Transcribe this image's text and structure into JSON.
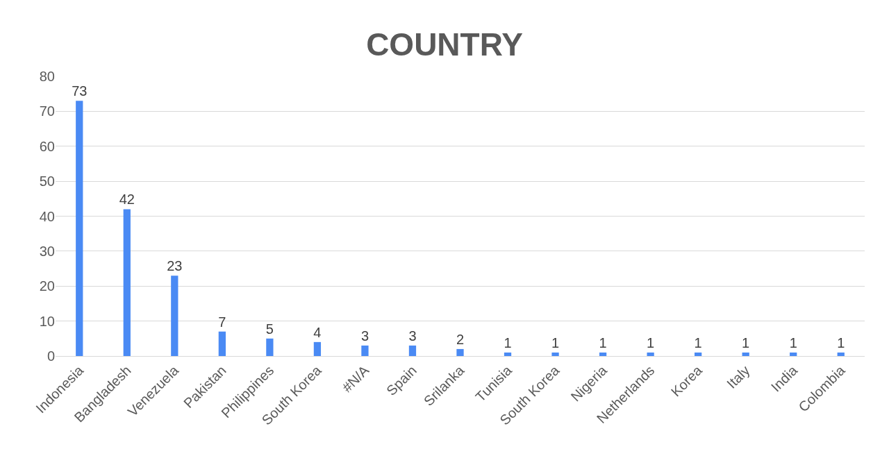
{
  "chart_data": {
    "type": "bar",
    "title": "COUNTRY",
    "categories": [
      "Indonesia",
      "Bangladesh",
      "Venezuela",
      "Pakistan",
      "Philippines",
      "South Korea",
      "#N/A",
      "Spain",
      "Srilanka",
      "Tunisia",
      "South Korea",
      "Nigeria",
      "Netherlands",
      "Korea",
      "Italy",
      "India",
      "Colombia"
    ],
    "values": [
      73,
      42,
      23,
      7,
      5,
      4,
      3,
      3,
      2,
      1,
      1,
      1,
      1,
      1,
      1,
      1,
      1
    ],
    "color": "#4a8af4",
    "ylim": [
      0,
      80
    ],
    "yticks": [
      0,
      10,
      20,
      30,
      40,
      50,
      60,
      70,
      80
    ],
    "grid": "y",
    "data_labels": true
  }
}
